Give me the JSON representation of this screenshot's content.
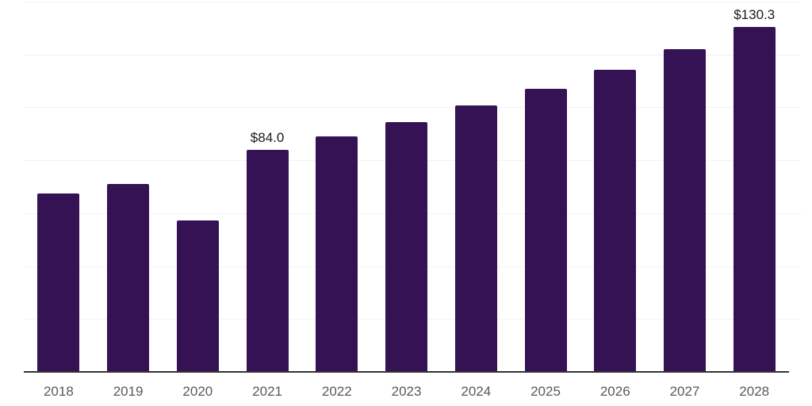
{
  "chart_data": {
    "type": "bar",
    "title": "",
    "xlabel": "",
    "ylabel": "",
    "categories": [
      "2018",
      "2019",
      "2020",
      "2021",
      "2022",
      "2023",
      "2024",
      "2025",
      "2026",
      "2027",
      "2028"
    ],
    "values": [
      67.4,
      71.2,
      57.4,
      84.0,
      89.0,
      94.4,
      100.7,
      107.0,
      114.2,
      122.0,
      130.3
    ],
    "data_labels": {
      "2021": "$84.0",
      "2028": "$130.3"
    },
    "value_prefix": "$",
    "ylim": [
      0,
      140
    ],
    "gridline_values": [
      140,
      120,
      100,
      80,
      60,
      40,
      20
    ],
    "grid": "horizontal",
    "legend": "none",
    "colors": {
      "bar": "#351254",
      "gridline": "#f2f2f2",
      "axis_line": "#333333",
      "tick_label": "#595959",
      "value_label": "#1a1a1a",
      "background": "#ffffff"
    }
  }
}
